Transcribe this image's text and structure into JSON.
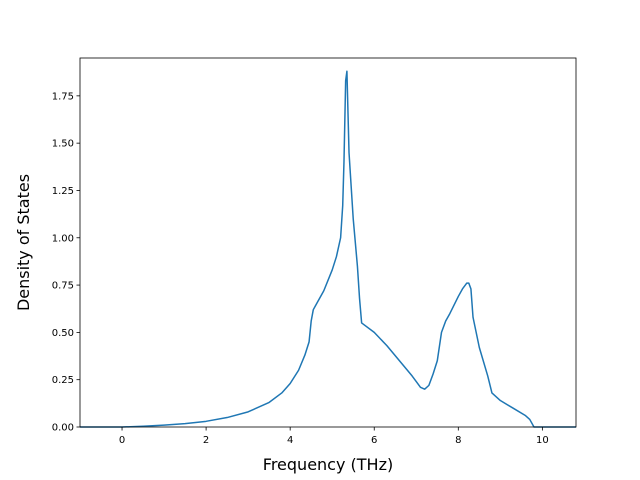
{
  "chart_data": {
    "type": "line",
    "title": "",
    "xlabel": "Frequency (THz)",
    "ylabel": "Density of States",
    "xlim": [
      -1.0,
      10.8
    ],
    "ylim": [
      0.0,
      1.95
    ],
    "x_ticks": [
      0,
      2,
      4,
      6,
      8,
      10
    ],
    "x_tick_labels": [
      "0",
      "2",
      "4",
      "6",
      "8",
      "10"
    ],
    "y_ticks": [
      0.0,
      0.25,
      0.5,
      0.75,
      1.0,
      1.25,
      1.5,
      1.75
    ],
    "y_tick_labels": [
      "0.00",
      "0.25",
      "0.50",
      "0.75",
      "1.00",
      "1.25",
      "1.50",
      "1.75"
    ],
    "grid": false,
    "legend": "none",
    "colors": {
      "line": "#1f77b4",
      "axes": "#000000",
      "background": "#ffffff"
    },
    "series": [
      {
        "x": [
          -1.0,
          -0.5,
          0.0,
          0.5,
          1.0,
          1.5,
          2.0,
          2.5,
          3.0,
          3.5,
          3.8,
          4.0,
          4.2,
          4.35,
          4.45,
          4.5,
          4.55,
          4.6,
          4.8,
          5.0,
          5.1,
          5.2,
          5.25,
          5.28,
          5.32,
          5.35,
          5.4,
          5.5,
          5.6,
          5.65,
          5.7,
          6.0,
          6.3,
          6.6,
          6.9,
          7.1,
          7.2,
          7.3,
          7.4,
          7.5,
          7.6,
          7.7,
          7.8,
          8.0,
          8.1,
          8.2,
          8.25,
          8.3,
          8.35,
          8.5,
          8.7,
          8.8,
          9.0,
          9.3,
          9.6,
          9.7,
          9.8,
          10.0,
          10.5,
          10.8
        ],
        "y": [
          0.0,
          0.0,
          0.0,
          0.004,
          0.01,
          0.018,
          0.03,
          0.05,
          0.08,
          0.13,
          0.18,
          0.23,
          0.3,
          0.38,
          0.45,
          0.56,
          0.62,
          0.64,
          0.72,
          0.83,
          0.9,
          1.0,
          1.17,
          1.4,
          1.83,
          1.88,
          1.45,
          1.1,
          0.85,
          0.68,
          0.55,
          0.5,
          0.43,
          0.35,
          0.27,
          0.21,
          0.2,
          0.22,
          0.28,
          0.35,
          0.5,
          0.56,
          0.6,
          0.69,
          0.73,
          0.76,
          0.76,
          0.73,
          0.58,
          0.42,
          0.27,
          0.18,
          0.14,
          0.1,
          0.06,
          0.04,
          0.0,
          0.0,
          0.0,
          0.0
        ]
      }
    ]
  }
}
